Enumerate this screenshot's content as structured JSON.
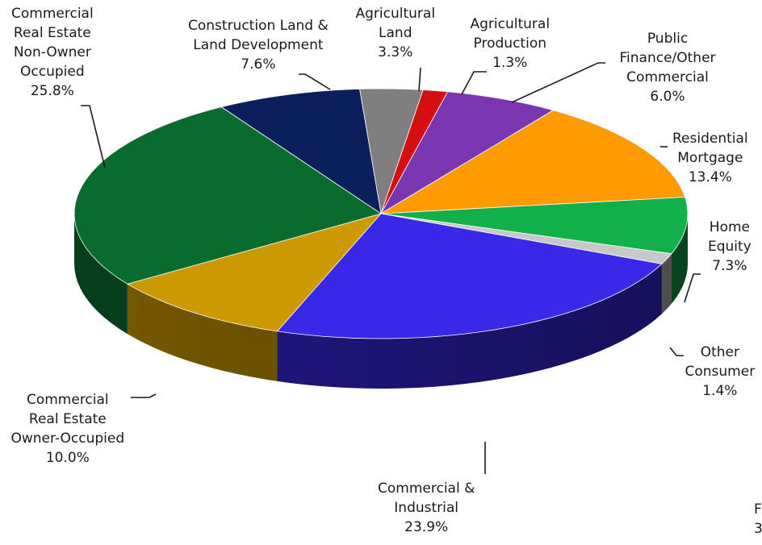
{
  "chart_data": {
    "type": "pie",
    "title": "",
    "style": "3d-tilted",
    "slices": [
      {
        "lines": [
          "Agricultural",
          "Land"
        ],
        "pct": "3.3%",
        "value": 3.3,
        "color": "#7f7f7f"
      },
      {
        "lines": [
          "Agricultural",
          "Production"
        ],
        "pct": "1.3%",
        "value": 1.3,
        "color": "#d40f0f"
      },
      {
        "lines": [
          "Public",
          "Finance/Other",
          "Commercial"
        ],
        "pct": "6.0%",
        "value": 6.0,
        "color": "#7a35b0"
      },
      {
        "lines": [
          "Residential",
          "Mortgage"
        ],
        "pct": "13.4%",
        "value": 13.4,
        "color": "#ff9a00"
      },
      {
        "lines": [
          "Home",
          "Equity"
        ],
        "pct": "7.3%",
        "value": 7.3,
        "color": "#12b04a"
      },
      {
        "lines": [
          "Other",
          "Consumer"
        ],
        "pct": "1.4%",
        "value": 1.4,
        "color": "#c8c8c8"
      },
      {
        "lines": [
          "Commercial &",
          "Industrial"
        ],
        "pct": "23.9%",
        "value": 23.9,
        "color": "#3a28e8"
      },
      {
        "lines": [
          "Commercial",
          "Real Estate",
          "Owner-Occupied"
        ],
        "pct": "10.0%",
        "value": 10.0,
        "color": "#cc9a00"
      },
      {
        "lines": [
          "Commercial",
          "Real Estate",
          "Non-Owner",
          "Occupied"
        ],
        "pct": "25.8%",
        "value": 25.8,
        "color": "#0a6b2e"
      },
      {
        "lines": [
          "Construction Land &",
          "Land Development"
        ],
        "pct": "7.6%",
        "value": 7.6,
        "color": "#0a1f5c"
      }
    ],
    "clipped_text": [
      "F",
      "3"
    ]
  }
}
